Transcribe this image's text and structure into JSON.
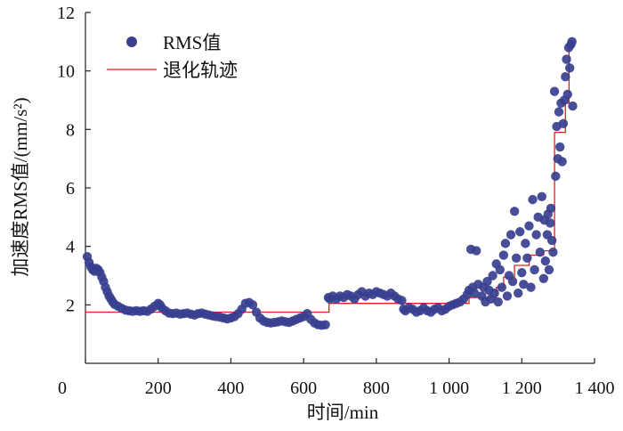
{
  "chart_data": {
    "type": "scatter",
    "xlabel": "时间/min",
    "ylabel": "加速度RMS值/(mm/s²)",
    "xlim": [
      0,
      1400
    ],
    "ylim": [
      0,
      12
    ],
    "x_ticks": [
      "0",
      "200",
      "400",
      "600",
      "800",
      "1 000",
      "1 200",
      "1 400"
    ],
    "x_tick_values": [
      0,
      200,
      400,
      600,
      800,
      1000,
      1200,
      1400
    ],
    "y_ticks": [
      "2",
      "4",
      "6",
      "8",
      "10",
      "12"
    ],
    "y_tick_values": [
      2,
      4,
      6,
      8,
      10,
      12
    ],
    "grid": false,
    "legend_position": "top-left",
    "series": [
      {
        "name": "RMS值",
        "type": "scatter",
        "color": "#3a3f8f",
        "points": [
          [
            5,
            3.65
          ],
          [
            10,
            3.45
          ],
          [
            15,
            3.3
          ],
          [
            20,
            3.2
          ],
          [
            25,
            3.15
          ],
          [
            30,
            3.25
          ],
          [
            35,
            3.2
          ],
          [
            40,
            3.1
          ],
          [
            45,
            2.95
          ],
          [
            50,
            2.8
          ],
          [
            55,
            2.6
          ],
          [
            60,
            2.45
          ],
          [
            65,
            2.3
          ],
          [
            70,
            2.2
          ],
          [
            75,
            2.1
          ],
          [
            80,
            2.02
          ],
          [
            90,
            1.95
          ],
          [
            100,
            1.88
          ],
          [
            110,
            1.82
          ],
          [
            120,
            1.8
          ],
          [
            130,
            1.78
          ],
          [
            140,
            1.8
          ],
          [
            150,
            1.78
          ],
          [
            160,
            1.8
          ],
          [
            170,
            1.78
          ],
          [
            180,
            1.85
          ],
          [
            190,
            1.95
          ],
          [
            200,
            2.05
          ],
          [
            205,
            2.0
          ],
          [
            210,
            1.9
          ],
          [
            220,
            1.8
          ],
          [
            230,
            1.72
          ],
          [
            240,
            1.7
          ],
          [
            250,
            1.72
          ],
          [
            260,
            1.68
          ],
          [
            270,
            1.7
          ],
          [
            280,
            1.72
          ],
          [
            290,
            1.68
          ],
          [
            300,
            1.65
          ],
          [
            310,
            1.7
          ],
          [
            320,
            1.72
          ],
          [
            330,
            1.68
          ],
          [
            340,
            1.65
          ],
          [
            350,
            1.62
          ],
          [
            360,
            1.6
          ],
          [
            370,
            1.58
          ],
          [
            380,
            1.55
          ],
          [
            390,
            1.52
          ],
          [
            400,
            1.55
          ],
          [
            410,
            1.6
          ],
          [
            420,
            1.7
          ],
          [
            430,
            1.85
          ],
          [
            440,
            2.05
          ],
          [
            450,
            2.08
          ],
          [
            460,
            2.0
          ],
          [
            470,
            1.75
          ],
          [
            480,
            1.55
          ],
          [
            490,
            1.45
          ],
          [
            500,
            1.4
          ],
          [
            510,
            1.38
          ],
          [
            520,
            1.4
          ],
          [
            530,
            1.42
          ],
          [
            540,
            1.45
          ],
          [
            550,
            1.42
          ],
          [
            560,
            1.4
          ],
          [
            570,
            1.45
          ],
          [
            580,
            1.5
          ],
          [
            590,
            1.55
          ],
          [
            600,
            1.6
          ],
          [
            610,
            1.7
          ],
          [
            620,
            1.5
          ],
          [
            630,
            1.38
          ],
          [
            640,
            1.32
          ],
          [
            650,
            1.3
          ],
          [
            660,
            1.32
          ],
          [
            668,
            2.25
          ],
          [
            672,
            2.2
          ],
          [
            680,
            2.3
          ],
          [
            690,
            2.2
          ],
          [
            700,
            2.3
          ],
          [
            710,
            2.25
          ],
          [
            720,
            2.35
          ],
          [
            730,
            2.3
          ],
          [
            740,
            2.2
          ],
          [
            750,
            2.35
          ],
          [
            760,
            2.45
          ],
          [
            770,
            2.3
          ],
          [
            780,
            2.4
          ],
          [
            790,
            2.35
          ],
          [
            800,
            2.45
          ],
          [
            810,
            2.4
          ],
          [
            820,
            2.35
          ],
          [
            830,
            2.3
          ],
          [
            840,
            2.4
          ],
          [
            850,
            2.3
          ],
          [
            860,
            2.2
          ],
          [
            870,
            2.15
          ],
          [
            875,
            1.85
          ],
          [
            880,
            1.8
          ],
          [
            890,
            1.9
          ],
          [
            900,
            1.85
          ],
          [
            910,
            1.75
          ],
          [
            920,
            1.8
          ],
          [
            930,
            1.9
          ],
          [
            940,
            1.8
          ],
          [
            950,
            1.75
          ],
          [
            960,
            1.85
          ],
          [
            970,
            1.9
          ],
          [
            980,
            1.8
          ],
          [
            990,
            1.85
          ],
          [
            1000,
            1.95
          ],
          [
            1010,
            2.0
          ],
          [
            1020,
            2.05
          ],
          [
            1030,
            2.1
          ],
          [
            1040,
            2.2
          ],
          [
            1050,
            2.35
          ],
          [
            1055,
            2.5
          ],
          [
            1060,
            3.9
          ],
          [
            1065,
            2.6
          ],
          [
            1070,
            2.4
          ],
          [
            1075,
            3.85
          ],
          [
            1080,
            2.7
          ],
          [
            1090,
            2.3
          ],
          [
            1095,
            2.6
          ],
          [
            1100,
            2.1
          ],
          [
            1105,
            2.8
          ],
          [
            1110,
            2.5
          ],
          [
            1115,
            2.2
          ],
          [
            1120,
            3.0
          ],
          [
            1125,
            2.4
          ],
          [
            1130,
            3.4
          ],
          [
            1135,
            2.1
          ],
          [
            1140,
            3.2
          ],
          [
            1145,
            2.6
          ],
          [
            1150,
            3.7
          ],
          [
            1155,
            4.1
          ],
          [
            1160,
            2.3
          ],
          [
            1165,
            3.0
          ],
          [
            1170,
            4.4
          ],
          [
            1175,
            2.8
          ],
          [
            1180,
            5.2
          ],
          [
            1185,
            3.6
          ],
          [
            1190,
            2.4
          ],
          [
            1195,
            4.5
          ],
          [
            1200,
            3.1
          ],
          [
            1205,
            2.7
          ],
          [
            1210,
            4.1
          ],
          [
            1215,
            3.6
          ],
          [
            1220,
            4.7
          ],
          [
            1225,
            2.6
          ],
          [
            1230,
            5.6
          ],
          [
            1235,
            3.2
          ],
          [
            1240,
            4.4
          ],
          [
            1245,
            5.0
          ],
          [
            1250,
            3.8
          ],
          [
            1255,
            5.7
          ],
          [
            1260,
            2.9
          ],
          [
            1262,
            4.9
          ],
          [
            1265,
            3.5
          ],
          [
            1270,
            4.4
          ],
          [
            1272,
            5.1
          ],
          [
            1275,
            3.2
          ],
          [
            1278,
            4.8
          ],
          [
            1280,
            5.3
          ],
          [
            1283,
            4.2
          ],
          [
            1286,
            3.8
          ],
          [
            1290,
            9.3
          ],
          [
            1293,
            6.4
          ],
          [
            1296,
            8.1
          ],
          [
            1299,
            7.0
          ],
          [
            1302,
            8.6
          ],
          [
            1305,
            7.4
          ],
          [
            1308,
            8.9
          ],
          [
            1311,
            6.9
          ],
          [
            1314,
            8.2
          ],
          [
            1317,
            9.0
          ],
          [
            1320,
            9.8
          ],
          [
            1323,
            10.4
          ],
          [
            1326,
            9.2
          ],
          [
            1329,
            10.8
          ],
          [
            1332,
            10.1
          ],
          [
            1335,
            10.9
          ],
          [
            1338,
            11.0
          ],
          [
            1340,
            8.8
          ]
        ]
      },
      {
        "name": "退化轨迹",
        "type": "step-line",
        "color": "#e0211b",
        "points": [
          [
            0,
            1.75
          ],
          [
            670,
            1.75
          ],
          [
            670,
            2.05
          ],
          [
            1055,
            2.05
          ],
          [
            1055,
            2.25
          ],
          [
            1130,
            2.25
          ],
          [
            1130,
            2.6
          ],
          [
            1150,
            2.6
          ],
          [
            1150,
            2.95
          ],
          [
            1180,
            2.95
          ],
          [
            1180,
            3.35
          ],
          [
            1220,
            3.35
          ],
          [
            1220,
            3.7
          ],
          [
            1260,
            3.7
          ],
          [
            1260,
            3.85
          ],
          [
            1290,
            3.85
          ],
          [
            1290,
            7.9
          ],
          [
            1320,
            7.9
          ],
          [
            1320,
            8.9
          ],
          [
            1330,
            8.9
          ],
          [
            1330,
            11.0
          ],
          [
            1340,
            11.0
          ]
        ]
      }
    ]
  }
}
